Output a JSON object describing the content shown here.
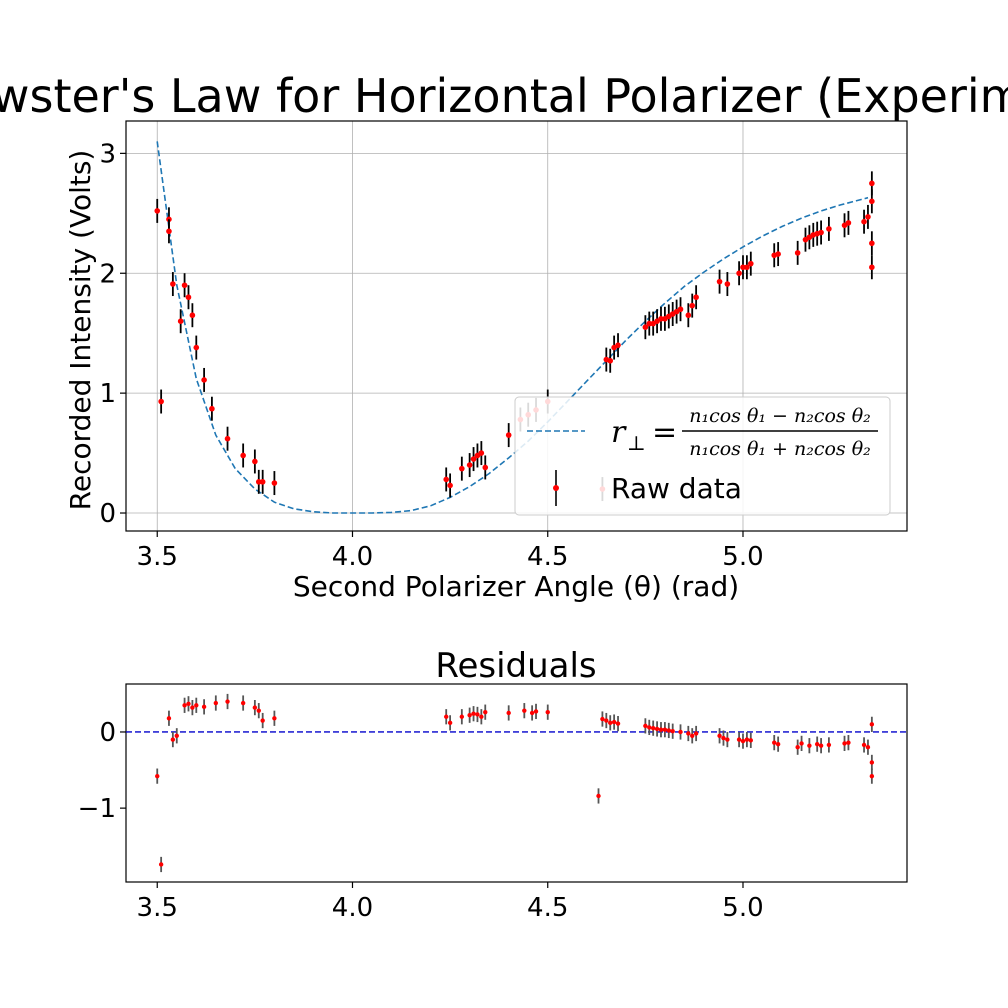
{
  "chart_data": [
    {
      "type": "scatter",
      "title": "Brewster's Law for Horizontal Polarizer (Experiment)",
      "xlabel": "Second Polarizer Angle (θ) (rad)",
      "ylabel": "Recorded Intensity (Volts)",
      "xlim": [
        3.42,
        5.42
      ],
      "ylim": [
        -0.15,
        3.27
      ],
      "xticks": [
        3.5,
        4.0,
        4.5,
        5.0
      ],
      "xtick_labels": [
        "3.5",
        "4.0",
        "4.5",
        "5.0"
      ],
      "yticks": [
        0,
        1,
        2,
        3
      ],
      "ytick_labels": [
        "0",
        "1",
        "2",
        "3"
      ],
      "grid": true,
      "legend_position": "lower right",
      "legend": [
        {
          "label": "r⊥ = (n1 cos θ1 − n2 cos θ2) / (n1 cos θ1 + n2 cos θ2)",
          "kind": "fit-line",
          "color": "#1f77b4"
        },
        {
          "label": "Raw data",
          "kind": "errorbar-points",
          "color": "#ff0000"
        }
      ],
      "legend_formula": {
        "lhs": "r",
        "lhs_sub": "⊥",
        "numerator": "n₁cos θ₁ − n₂cos θ₂",
        "denominator": "n₁cos θ₁ + n₂cos θ₂"
      },
      "fit_curve": {
        "name": "r⊥",
        "x": [
          3.5,
          3.55,
          3.6,
          3.65,
          3.7,
          3.75,
          3.8,
          3.85,
          3.9,
          3.95,
          4.0,
          4.05,
          4.1,
          4.15,
          4.2,
          4.25,
          4.3,
          4.35,
          4.4,
          4.45,
          4.5,
          4.55,
          4.6,
          4.65,
          4.7,
          4.75,
          4.8,
          4.85,
          4.9,
          4.95,
          5.0,
          5.05,
          5.1,
          5.15,
          5.2,
          5.25,
          5.32
        ],
        "y": [
          3.1,
          1.9,
          1.12,
          0.65,
          0.37,
          0.2,
          0.09,
          0.035,
          0.01,
          0.0,
          0.0,
          0.0,
          0.005,
          0.02,
          0.06,
          0.13,
          0.22,
          0.33,
          0.46,
          0.6,
          0.76,
          0.93,
          1.1,
          1.27,
          1.44,
          1.6,
          1.75,
          1.89,
          2.01,
          2.12,
          2.22,
          2.31,
          2.39,
          2.46,
          2.52,
          2.57,
          2.63
        ]
      },
      "series": [
        {
          "name": "Raw data",
          "x": [
            3.5,
            3.51,
            3.53,
            3.53,
            3.54,
            3.56,
            3.57,
            3.58,
            3.59,
            3.6,
            3.62,
            3.64,
            3.68,
            3.72,
            3.75,
            3.76,
            3.77,
            3.8,
            4.24,
            4.25,
            4.28,
            4.3,
            4.31,
            4.32,
            4.33,
            4.34,
            4.4,
            4.43,
            4.45,
            4.47,
            4.5,
            4.64,
            4.65,
            4.66,
            4.67,
            4.68,
            4.75,
            4.76,
            4.77,
            4.78,
            4.79,
            4.8,
            4.81,
            4.82,
            4.83,
            4.84,
            4.86,
            4.87,
            4.88,
            4.94,
            4.96,
            4.99,
            5.0,
            5.01,
            5.02,
            5.08,
            5.09,
            5.14,
            5.16,
            5.17,
            5.18,
            5.19,
            5.2,
            5.22,
            5.26,
            5.27,
            5.31,
            5.32,
            5.33,
            5.33,
            5.33,
            5.33
          ],
          "y": [
            2.52,
            0.93,
            2.45,
            2.35,
            1.91,
            1.6,
            1.9,
            1.8,
            1.65,
            1.38,
            1.11,
            0.87,
            0.62,
            0.48,
            0.43,
            0.26,
            0.26,
            0.25,
            0.28,
            0.23,
            0.37,
            0.4,
            0.45,
            0.48,
            0.5,
            0.38,
            0.65,
            0.78,
            0.82,
            0.86,
            0.93,
            0.2,
            1.28,
            1.27,
            1.38,
            1.4,
            1.55,
            1.58,
            1.58,
            1.6,
            1.62,
            1.62,
            1.64,
            1.66,
            1.68,
            1.7,
            1.65,
            1.73,
            1.8,
            1.93,
            1.91,
            2.0,
            2.05,
            2.05,
            2.08,
            2.15,
            2.16,
            2.17,
            2.28,
            2.3,
            2.32,
            2.33,
            2.34,
            2.37,
            2.4,
            2.42,
            2.43,
            2.47,
            2.25,
            2.05,
            2.6,
            2.75
          ],
          "yerr": 0.1,
          "color": "#ff0000"
        }
      ]
    },
    {
      "type": "scatter",
      "title": "Residuals",
      "xlim": [
        3.42,
        5.42
      ],
      "ylim": [
        -1.97,
        0.63
      ],
      "xticks": [
        3.5,
        4.0,
        4.5,
        5.0
      ],
      "xtick_labels": [
        "3.5",
        "4.0",
        "4.5",
        "5.0"
      ],
      "yticks": [
        0,
        -1
      ],
      "ytick_labels": [
        "0",
        "−1"
      ],
      "grid": false,
      "zero_line": {
        "y": 0,
        "color": "#0000cc",
        "style": "dashed"
      },
      "series": [
        {
          "name": "residuals",
          "x": [
            3.5,
            3.51,
            3.53,
            3.54,
            3.55,
            3.57,
            3.58,
            3.59,
            3.6,
            3.62,
            3.65,
            3.68,
            3.72,
            3.75,
            3.76,
            3.77,
            3.8,
            4.24,
            4.25,
            4.28,
            4.3,
            4.31,
            4.32,
            4.33,
            4.34,
            4.4,
            4.44,
            4.46,
            4.47,
            4.5,
            4.63,
            4.64,
            4.65,
            4.66,
            4.67,
            4.68,
            4.75,
            4.76,
            4.77,
            4.78,
            4.79,
            4.8,
            4.81,
            4.82,
            4.84,
            4.86,
            4.87,
            4.88,
            4.94,
            4.95,
            4.96,
            4.99,
            5.0,
            5.01,
            5.02,
            5.08,
            5.09,
            5.14,
            5.15,
            5.17,
            5.19,
            5.2,
            5.22,
            5.26,
            5.27,
            5.31,
            5.32,
            5.33,
            5.33,
            5.33
          ],
          "y": [
            -0.58,
            -1.74,
            0.18,
            -0.1,
            -0.05,
            0.35,
            0.37,
            0.32,
            0.35,
            0.33,
            0.38,
            0.4,
            0.38,
            0.32,
            0.28,
            0.15,
            0.18,
            0.2,
            0.12,
            0.2,
            0.22,
            0.24,
            0.23,
            0.2,
            0.26,
            0.25,
            0.28,
            0.25,
            0.27,
            0.26,
            -0.84,
            0.17,
            0.15,
            0.12,
            0.13,
            0.11,
            0.08,
            0.06,
            0.05,
            0.04,
            0.03,
            0.03,
            0.02,
            0.01,
            0.0,
            -0.02,
            -0.05,
            -0.02,
            -0.05,
            -0.08,
            -0.1,
            -0.1,
            -0.12,
            -0.1,
            -0.11,
            -0.14,
            -0.16,
            -0.2,
            -0.15,
            -0.18,
            -0.16,
            -0.18,
            -0.17,
            -0.15,
            -0.14,
            -0.17,
            -0.2,
            -0.4,
            -0.58,
            0.1
          ],
          "yerr": 0.1,
          "color": "#ff0000"
        }
      ]
    }
  ]
}
